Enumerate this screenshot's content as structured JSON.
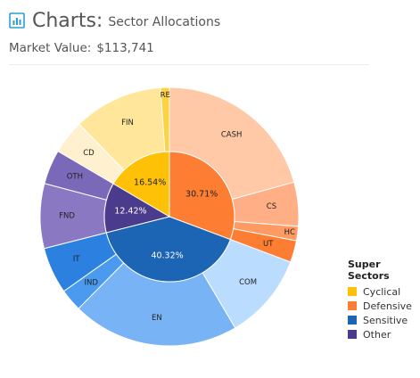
{
  "header": {
    "app_title": "Charts:",
    "subtitle": "Sector Allocations",
    "icon": "bar-chart-icon"
  },
  "market": {
    "label": "Market Value:",
    "value": "$113,741"
  },
  "colors": {
    "accent": "#2a9fd6",
    "Cyclical": "#ffc107",
    "Defensive": "#fd7e32",
    "Sensitive": "#1c64b4",
    "Other": "#4a3b8c"
  },
  "chart_data": {
    "type": "sunburst",
    "inner": [
      {
        "label": "30.71%",
        "group": "Defensive",
        "value": 30.71,
        "color": "#fd7e32",
        "text_color": "#222222"
      },
      {
        "label": "40.32%",
        "group": "Sensitive",
        "value": 40.32,
        "color": "#1c64b4",
        "text_color": "#ffffff"
      },
      {
        "label": "12.42%",
        "group": "Other",
        "value": 12.42,
        "color": "#4a3b8c",
        "text_color": "#ffffff"
      },
      {
        "label": "16.54%",
        "group": "Cyclical",
        "value": 16.54,
        "color": "#ffc107",
        "text_color": "#222222"
      }
    ],
    "outer": [
      {
        "label": "CASH",
        "group": "Defensive",
        "value": 20.7,
        "color": "#ffc8a6"
      },
      {
        "label": "CS",
        "group": "Defensive",
        "value": 5.5,
        "color": "#ffae85"
      },
      {
        "label": "HC",
        "group": "Defensive",
        "value": 1.8,
        "color": "#ff9a63"
      },
      {
        "label": "UT",
        "group": "Defensive",
        "value": 2.71,
        "color": "#fd7e32"
      },
      {
        "label": "COM",
        "group": "Sensitive",
        "value": 10.8,
        "color": "#b9dcff"
      },
      {
        "label": "EN",
        "group": "Sensitive",
        "value": 20.9,
        "color": "#78b4f5"
      },
      {
        "label": "IND",
        "group": "Sensitive",
        "value": 2.8,
        "color": "#4a9af0"
      },
      {
        "label": "IT",
        "group": "Sensitive",
        "value": 5.82,
        "color": "#2b80e0"
      },
      {
        "label": "FND",
        "group": "Other",
        "value": 8.1,
        "color": "#8a78c2"
      },
      {
        "label": "OTH",
        "group": "Other",
        "value": 4.32,
        "color": "#7a68b8"
      },
      {
        "label": "CD",
        "group": "Cyclical",
        "value": 4.24,
        "color": "#fff1cf"
      },
      {
        "label": "FIN",
        "group": "Cyclical",
        "value": 11.2,
        "color": "#ffe69a"
      },
      {
        "label": "RE",
        "group": "Cyclical",
        "value": 1.1,
        "color": "#ffd23f"
      }
    ]
  },
  "legend": {
    "title": "Super Sectors",
    "placement": "bottom-right",
    "items": [
      {
        "label": "Cyclical",
        "color": "#ffc107"
      },
      {
        "label": "Defensive",
        "color": "#fd7e32"
      },
      {
        "label": "Sensitive",
        "color": "#1c64b4"
      },
      {
        "label": "Other",
        "color": "#4a3b8c"
      }
    ]
  }
}
